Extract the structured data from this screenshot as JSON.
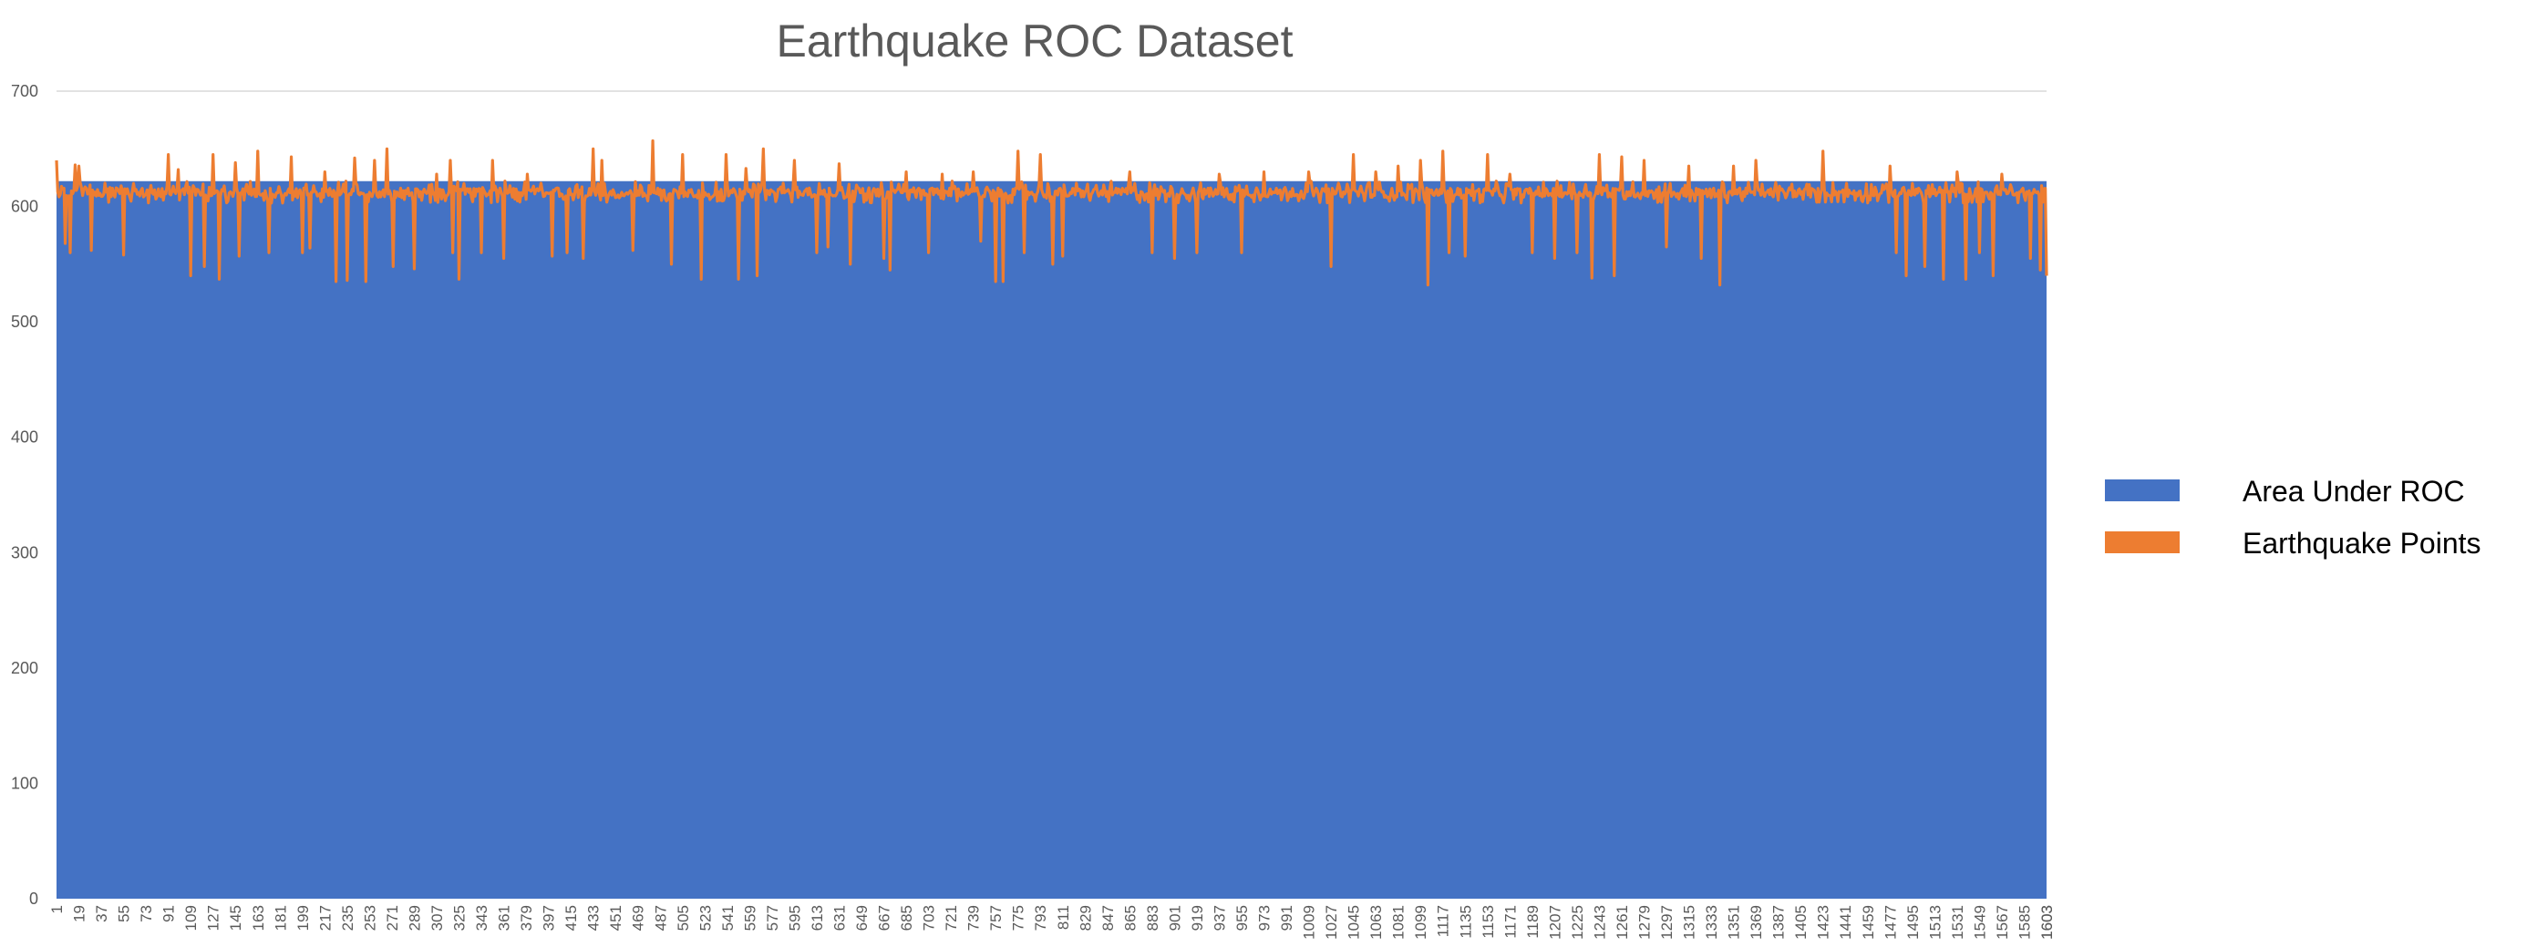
{
  "chart_data": {
    "type": "area",
    "title": "Earthquake ROC Dataset",
    "xlabel": "",
    "ylabel": "",
    "x_range": [
      1,
      1603
    ],
    "x_tick_step": 18,
    "ylim": [
      0,
      700
    ],
    "y_ticks": [
      0,
      100,
      200,
      300,
      400,
      500,
      600,
      700
    ],
    "grid": "top-line-only",
    "legend_position": "right",
    "series": [
      {
        "name": "Area Under ROC",
        "kind": "area",
        "color": "#4472C4",
        "constant_value": 622
      },
      {
        "name": "Earthquake Points",
        "kind": "line",
        "color": "#ED7D31",
        "baseline_range": [
          603,
          622
        ],
        "typical_value": 612,
        "spikes": [
          {
            "x": 1,
            "y": 640
          },
          {
            "x": 8,
            "y": 568
          },
          {
            "x": 12,
            "y": 560
          },
          {
            "x": 16,
            "y": 636
          },
          {
            "x": 19,
            "y": 635
          },
          {
            "x": 29,
            "y": 562
          },
          {
            "x": 55,
            "y": 558
          },
          {
            "x": 91,
            "y": 645
          },
          {
            "x": 99,
            "y": 632
          },
          {
            "x": 109,
            "y": 540
          },
          {
            "x": 120,
            "y": 548
          },
          {
            "x": 127,
            "y": 645
          },
          {
            "x": 132,
            "y": 537
          },
          {
            "x": 145,
            "y": 638
          },
          {
            "x": 148,
            "y": 557
          },
          {
            "x": 163,
            "y": 648
          },
          {
            "x": 172,
            "y": 560
          },
          {
            "x": 190,
            "y": 643
          },
          {
            "x": 199,
            "y": 560
          },
          {
            "x": 205,
            "y": 564
          },
          {
            "x": 217,
            "y": 630
          },
          {
            "x": 226,
            "y": 535
          },
          {
            "x": 235,
            "y": 536
          },
          {
            "x": 241,
            "y": 642
          },
          {
            "x": 250,
            "y": 535
          },
          {
            "x": 257,
            "y": 640
          },
          {
            "x": 267,
            "y": 650
          },
          {
            "x": 272,
            "y": 548
          },
          {
            "x": 289,
            "y": 546
          },
          {
            "x": 307,
            "y": 628
          },
          {
            "x": 318,
            "y": 640
          },
          {
            "x": 320,
            "y": 560
          },
          {
            "x": 325,
            "y": 537
          },
          {
            "x": 343,
            "y": 560
          },
          {
            "x": 352,
            "y": 640
          },
          {
            "x": 361,
            "y": 555
          },
          {
            "x": 380,
            "y": 628
          },
          {
            "x": 400,
            "y": 557
          },
          {
            "x": 412,
            "y": 560
          },
          {
            "x": 425,
            "y": 555
          },
          {
            "x": 433,
            "y": 650
          },
          {
            "x": 440,
            "y": 640
          },
          {
            "x": 465,
            "y": 562
          },
          {
            "x": 481,
            "y": 657
          },
          {
            "x": 496,
            "y": 550
          },
          {
            "x": 505,
            "y": 645
          },
          {
            "x": 520,
            "y": 537
          },
          {
            "x": 540,
            "y": 645
          },
          {
            "x": 550,
            "y": 537
          },
          {
            "x": 556,
            "y": 633
          },
          {
            "x": 565,
            "y": 540
          },
          {
            "x": 570,
            "y": 650
          },
          {
            "x": 595,
            "y": 640
          },
          {
            "x": 613,
            "y": 560
          },
          {
            "x": 622,
            "y": 565
          },
          {
            "x": 631,
            "y": 637
          },
          {
            "x": 640,
            "y": 550
          },
          {
            "x": 667,
            "y": 555
          },
          {
            "x": 672,
            "y": 545
          },
          {
            "x": 685,
            "y": 630
          },
          {
            "x": 703,
            "y": 560
          },
          {
            "x": 714,
            "y": 628
          },
          {
            "x": 739,
            "y": 630
          },
          {
            "x": 745,
            "y": 570
          },
          {
            "x": 757,
            "y": 535
          },
          {
            "x": 763,
            "y": 535
          },
          {
            "x": 775,
            "y": 648
          },
          {
            "x": 780,
            "y": 560
          },
          {
            "x": 793,
            "y": 645
          },
          {
            "x": 803,
            "y": 550
          },
          {
            "x": 811,
            "y": 557
          },
          {
            "x": 865,
            "y": 630
          },
          {
            "x": 883,
            "y": 560
          },
          {
            "x": 901,
            "y": 555
          },
          {
            "x": 919,
            "y": 560
          },
          {
            "x": 937,
            "y": 628
          },
          {
            "x": 955,
            "y": 560
          },
          {
            "x": 973,
            "y": 630
          },
          {
            "x": 1009,
            "y": 630
          },
          {
            "x": 1027,
            "y": 548
          },
          {
            "x": 1045,
            "y": 645
          },
          {
            "x": 1063,
            "y": 630
          },
          {
            "x": 1081,
            "y": 635
          },
          {
            "x": 1099,
            "y": 640
          },
          {
            "x": 1105,
            "y": 532
          },
          {
            "x": 1117,
            "y": 648
          },
          {
            "x": 1122,
            "y": 560
          },
          {
            "x": 1135,
            "y": 557
          },
          {
            "x": 1153,
            "y": 645
          },
          {
            "x": 1171,
            "y": 628
          },
          {
            "x": 1189,
            "y": 560
          },
          {
            "x": 1207,
            "y": 555
          },
          {
            "x": 1225,
            "y": 560
          },
          {
            "x": 1237,
            "y": 538
          },
          {
            "x": 1243,
            "y": 645
          },
          {
            "x": 1255,
            "y": 540
          },
          {
            "x": 1261,
            "y": 643
          },
          {
            "x": 1279,
            "y": 640
          },
          {
            "x": 1297,
            "y": 565
          },
          {
            "x": 1315,
            "y": 635
          },
          {
            "x": 1325,
            "y": 555
          },
          {
            "x": 1340,
            "y": 532
          },
          {
            "x": 1351,
            "y": 635
          },
          {
            "x": 1369,
            "y": 640
          },
          {
            "x": 1423,
            "y": 648
          },
          {
            "x": 1477,
            "y": 635
          },
          {
            "x": 1482,
            "y": 560
          },
          {
            "x": 1490,
            "y": 540
          },
          {
            "x": 1495,
            "y": 620
          },
          {
            "x": 1505,
            "y": 548
          },
          {
            "x": 1520,
            "y": 537
          },
          {
            "x": 1531,
            "y": 630
          },
          {
            "x": 1538,
            "y": 537
          },
          {
            "x": 1549,
            "y": 560
          },
          {
            "x": 1560,
            "y": 540
          },
          {
            "x": 1567,
            "y": 628
          },
          {
            "x": 1590,
            "y": 555
          },
          {
            "x": 1598,
            "y": 545
          },
          {
            "x": 1603,
            "y": 540
          }
        ]
      }
    ]
  }
}
